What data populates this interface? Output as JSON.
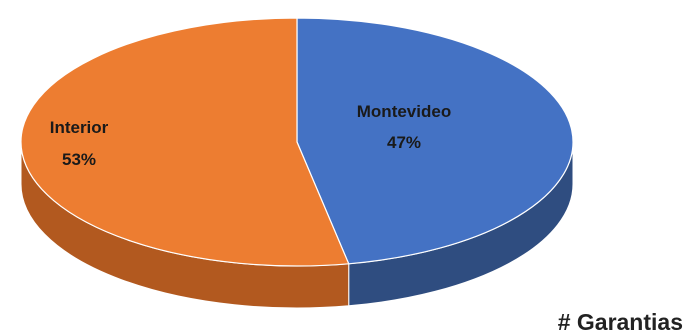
{
  "chart_data": {
    "type": "pie",
    "title": "# Garantias",
    "slices": [
      {
        "name": "Montevideo",
        "value": 47,
        "label": "47%",
        "color": "#4472c4",
        "side_color": "#2f4d80"
      },
      {
        "name": "Interior",
        "value": 53,
        "label": "53%",
        "color": "#ed7d31",
        "side_color": "#b2591f"
      }
    ],
    "grid": false,
    "legend": "none"
  }
}
